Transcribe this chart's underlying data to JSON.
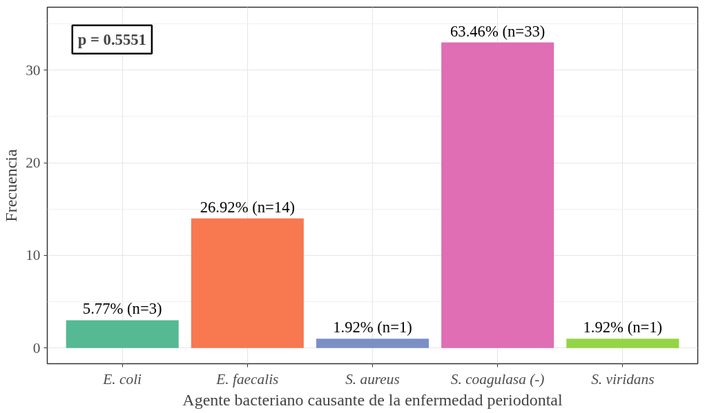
{
  "chart_data": {
    "type": "bar",
    "xlabel": "Agente bacteriano causante de la enfermedad periodontal",
    "ylabel": "Frecuencia",
    "categories": [
      "E. coli",
      "E. faecalis",
      "S. aureus",
      "S. coagulasa (-)",
      "S. viridans"
    ],
    "values": [
      3,
      14,
      1,
      33,
      1
    ],
    "colors": [
      "#55b993",
      "#f87850",
      "#7b8fc7",
      "#df6eb4",
      "#94d545"
    ],
    "value_labels": [
      "5.77% (n=3)",
      "26.92% (n=14)",
      "1.92% (n=1)",
      "63.46% (n=33)",
      "1.92% (n=1)"
    ],
    "ylim": [
      -1.7,
      36.8
    ],
    "yticks": [
      0,
      10,
      20,
      30
    ],
    "grid": true,
    "annotations": [
      "p = 0.5551"
    ]
  }
}
